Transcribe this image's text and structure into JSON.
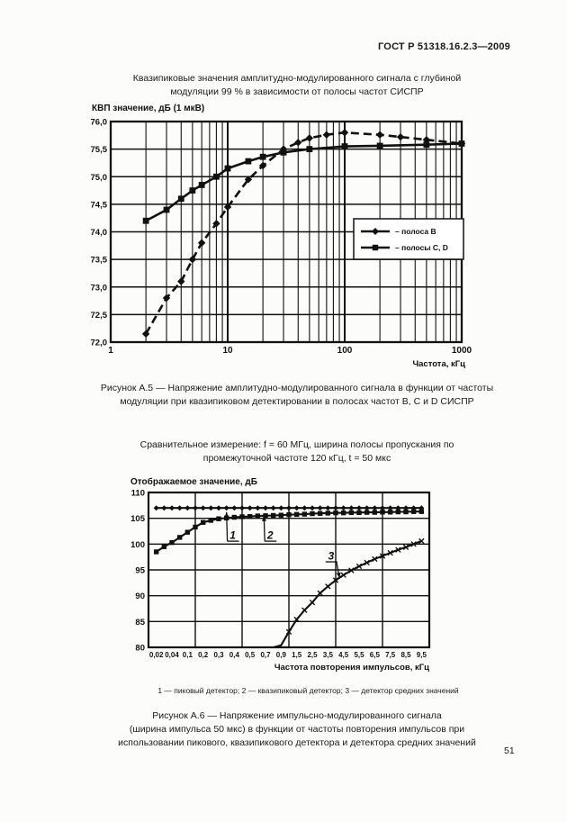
{
  "page": {
    "header": "ГОСТ Р 51318.16.2.3—2009",
    "page_number": "51"
  },
  "figure_a5": {
    "title_line1": "Квазипиковые значения амплитудно-модулированного сигнала с глубиной",
    "title_line2": "модуляции 99 % в зависимости от полосы частот СИСПР",
    "caption_line1": "Рисунок А.5 — Напряжение амплитудно-модулированного  сигнала в функции от частоты",
    "caption_line2": "модуляции при квазипиковом детектировании в полосах  частот B, C и D СИСПР"
  },
  "figure_a6": {
    "intro_line1": "Сравнительное измерение: f  = 60 МГц, ширина полосы пропускания по",
    "intro_line2": "промежуточной частоте 120 кГц,  t  = 50 мкс",
    "legend_line": "1 — пиковый детектор; 2 — квазипиковый детектор; 3 — детектор средних значений",
    "caption_line1": "Рисунок А.6  —  Напряжение импульсно-модулированного сигнала",
    "caption_line2": "(ширина импульса 50 мкс) в функции от частоты повторения импульсов при",
    "caption_line3": "использовании пикового, квазипикового детектора  и детектора средних значений"
  },
  "chart_data": [
    {
      "type": "line",
      "title": "Квазипиковые значения амплитудно-модулированного сигнала с глубиной модуляции 99 % в зависимости от полосы частот СИСПР",
      "ylabel": "КВП значение, дБ (1 мкВ)",
      "xlabel": "Частота, кГц",
      "x_scale": "log",
      "xlim": [
        1,
        1000
      ],
      "ylim": [
        72,
        76
      ],
      "x_tick_values": [
        1,
        10,
        100,
        1000
      ],
      "x_tick_labels": [
        "1",
        "10",
        "100",
        "1000"
      ],
      "y_tick_values": [
        72,
        72.5,
        73,
        73.5,
        74,
        74.5,
        75,
        75.5,
        76
      ],
      "y_tick_labels": [
        "72,0",
        "72,5",
        "73,0",
        "73,5",
        "74,0",
        "74,5",
        "75,0",
        "75,5",
        "76,0"
      ],
      "grid": "log-minor",
      "legend": {
        "position": "inside-right",
        "entries": [
          {
            "marker": "diamond",
            "label": "– полоса B"
          },
          {
            "marker": "square",
            "label": "– полосы C, D"
          }
        ]
      },
      "series": [
        {
          "name": "полоса B",
          "marker": "diamond",
          "dash": true,
          "points": [
            [
              2,
              72.15
            ],
            [
              3,
              72.8
            ],
            [
              4,
              73.1
            ],
            [
              5,
              73.5
            ],
            [
              6,
              73.8
            ],
            [
              8,
              74.15
            ],
            [
              10,
              74.45
            ],
            [
              15,
              74.95
            ],
            [
              20,
              75.2
            ],
            [
              30,
              75.5
            ],
            [
              40,
              75.62
            ],
            [
              50,
              75.7
            ],
            [
              70,
              75.76
            ],
            [
              100,
              75.8
            ],
            [
              200,
              75.76
            ],
            [
              300,
              75.72
            ],
            [
              500,
              75.67
            ],
            [
              1000,
              75.6
            ]
          ]
        },
        {
          "name": "полосы C, D",
          "marker": "square",
          "dash": false,
          "points": [
            [
              2,
              74.2
            ],
            [
              3,
              74.4
            ],
            [
              4,
              74.6
            ],
            [
              5,
              74.75
            ],
            [
              6,
              74.85
            ],
            [
              8,
              75.0
            ],
            [
              10,
              75.15
            ],
            [
              15,
              75.28
            ],
            [
              20,
              75.36
            ],
            [
              30,
              75.44
            ],
            [
              50,
              75.5
            ],
            [
              100,
              75.55
            ],
            [
              200,
              75.56
            ],
            [
              500,
              75.58
            ],
            [
              1000,
              75.6
            ]
          ]
        }
      ]
    },
    {
      "type": "line",
      "title": "Сравнительное измерение: f = 60 МГц, ширина полосы пропускания по промежуточной частоте 120 кГц, t = 50 мкс",
      "ylabel": "Отображаемое значение, дБ",
      "xlabel": "Частота повторения импульсов, кГц",
      "ylim": [
        80,
        110
      ],
      "y_tick_values": [
        80,
        85,
        90,
        95,
        100,
        105,
        110
      ],
      "y_tick_labels": [
        "80",
        "85",
        "90",
        "95",
        "100",
        "105",
        "110"
      ],
      "categories": [
        "0,02",
        "0,04",
        "0,1",
        "0,2",
        "0,3",
        "0,4",
        "0,5",
        "0,7",
        "0,9",
        "1,5",
        "2,5",
        "3,5",
        "4,5",
        "5,5",
        "6,5",
        "7,5",
        "8,5",
        "9,5"
      ],
      "grid_column_count": 6,
      "series": [
        {
          "name": "1 — пиковый детектор",
          "marker": "diamond",
          "const_value": 107,
          "idx_from": 0,
          "idx_to": 17,
          "idx_step": 0.5
        },
        {
          "name": "2 — квазипиковый детектор",
          "marker": "square",
          "points": [
            [
              0,
              98.5
            ],
            [
              0.5,
              99.5
            ],
            [
              1,
              100.3
            ],
            [
              1.5,
              101.3
            ],
            [
              2,
              102.3
            ],
            [
              2.5,
              103.3
            ],
            [
              3,
              104.2
            ],
            [
              3.5,
              104.6
            ],
            [
              4,
              104.9
            ],
            [
              4.5,
              105.05
            ],
            [
              5,
              105.2
            ],
            [
              5.5,
              105.3
            ],
            [
              6,
              105.35
            ],
            [
              6.5,
              105.45
            ],
            [
              7,
              105.5
            ],
            [
              7.5,
              105.55
            ],
            [
              8,
              105.6
            ],
            [
              8.5,
              105.7
            ],
            [
              9,
              105.75
            ],
            [
              9.5,
              105.8
            ],
            [
              10,
              105.9
            ],
            [
              10.5,
              105.95
            ],
            [
              11,
              106
            ],
            [
              11.5,
              106.05
            ],
            [
              12,
              106.05
            ],
            [
              12.5,
              106.1
            ],
            [
              13,
              106.1
            ],
            [
              13.5,
              106.15
            ],
            [
              14,
              106.15
            ],
            [
              14.5,
              106.2
            ],
            [
              15,
              106.2
            ],
            [
              15.5,
              106.25
            ],
            [
              16,
              106.25
            ],
            [
              16.5,
              106.3
            ],
            [
              17,
              106.3
            ]
          ]
        },
        {
          "name": "3 — детектор средних значений",
          "marker": "cross",
          "marker_from": 8.4,
          "points": [
            [
              7.5,
              80
            ],
            [
              8,
              80.4
            ],
            [
              8.5,
              83
            ],
            [
              9,
              85.4
            ],
            [
              9.5,
              87.2
            ],
            [
              10,
              88.7
            ],
            [
              10.5,
              90.5
            ],
            [
              11,
              91.8
            ],
            [
              11.5,
              93
            ],
            [
              12,
              94
            ],
            [
              12.5,
              94.9
            ],
            [
              13,
              95.7
            ],
            [
              13.5,
              96.4
            ],
            [
              14,
              97.1
            ],
            [
              14.5,
              97.7
            ],
            [
              15,
              98.3
            ],
            [
              15.5,
              98.9
            ],
            [
              16,
              99.4
            ],
            [
              16.5,
              100
            ],
            [
              17,
              100.6
            ]
          ]
        }
      ],
      "annotations": [
        {
          "text": "1",
          "label_idx": 4.9,
          "label_val": 101.0,
          "tip_idx": 4.5,
          "tip_val": 106.2
        },
        {
          "text": "2",
          "label_idx": 7.3,
          "label_val": 101.0,
          "tip_idx": 6.9,
          "tip_val": 105.5
        },
        {
          "text": "3",
          "label_idx": 11.2,
          "label_val": 97.0,
          "tip_idx": 11.75,
          "tip_val": 93.4
        }
      ]
    }
  ]
}
